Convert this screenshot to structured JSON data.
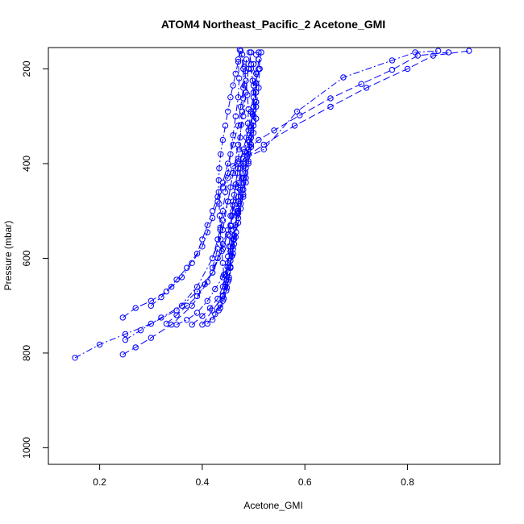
{
  "chart_data": {
    "type": "line",
    "title": "ATOM4 Northeast_Pacific_2 Acetone_GMI",
    "xlabel": "Acetone_GMI",
    "ylabel": "Pressure (mbar)",
    "xlim": [
      0.1,
      0.98
    ],
    "ylim": [
      1035,
      155
    ],
    "y_reversed": true,
    "x_ticks": [
      0.2,
      0.4,
      0.6,
      0.8
    ],
    "y_ticks": [
      200,
      400,
      600,
      800,
      1000
    ],
    "grid": false,
    "line_color": "#0000ff",
    "marker": "open-circle",
    "series": [
      {
        "points": [
          [
            0.152,
            810
          ],
          [
            0.2,
            782
          ],
          [
            0.25,
            760
          ],
          [
            0.3,
            738
          ],
          [
            0.35,
            710
          ],
          [
            0.39,
            660
          ],
          [
            0.42,
            600
          ],
          [
            0.44,
            540
          ],
          [
            0.45,
            480
          ],
          [
            0.46,
            420
          ],
          [
            0.47,
            360
          ],
          [
            0.48,
            300
          ],
          [
            0.485,
            250
          ],
          [
            0.49,
            200
          ],
          [
            0.495,
            165
          ]
        ]
      },
      {
        "points": [
          [
            0.245,
            803
          ],
          [
            0.27,
            788
          ],
          [
            0.3,
            768
          ],
          [
            0.34,
            740
          ],
          [
            0.38,
            700
          ],
          [
            0.41,
            650
          ],
          [
            0.43,
            600
          ],
          [
            0.45,
            550
          ],
          [
            0.46,
            500
          ],
          [
            0.47,
            450
          ],
          [
            0.48,
            400
          ],
          [
            0.49,
            350
          ],
          [
            0.5,
            300
          ],
          [
            0.505,
            250
          ],
          [
            0.51,
            200
          ],
          [
            0.515,
            165
          ]
        ]
      },
      {
        "points": [
          [
            0.25,
            772
          ],
          [
            0.28,
            752
          ],
          [
            0.32,
            725
          ],
          [
            0.36,
            700
          ],
          [
            0.39,
            670
          ],
          [
            0.42,
            630
          ],
          [
            0.44,
            580
          ],
          [
            0.455,
            530
          ],
          [
            0.47,
            480
          ],
          [
            0.48,
            430
          ],
          [
            0.49,
            380
          ],
          [
            0.495,
            330
          ],
          [
            0.5,
            280
          ],
          [
            0.505,
            230
          ],
          [
            0.51,
            180
          ]
        ]
      },
      {
        "points": [
          [
            0.245,
            725
          ],
          [
            0.27,
            705
          ],
          [
            0.3,
            690
          ],
          [
            0.33,
            670
          ],
          [
            0.35,
            645
          ],
          [
            0.37,
            620
          ],
          [
            0.39,
            590
          ],
          [
            0.4,
            560
          ],
          [
            0.41,
            530
          ],
          [
            0.42,
            500
          ],
          [
            0.43,
            470
          ],
          [
            0.44,
            440
          ],
          [
            0.45,
            400
          ],
          [
            0.46,
            360
          ],
          [
            0.47,
            320
          ],
          [
            0.475,
            280
          ],
          [
            0.48,
            240
          ],
          [
            0.48,
            200
          ],
          [
            0.475,
            162
          ]
        ]
      },
      {
        "points": [
          [
            0.3,
            700
          ],
          [
            0.32,
            682
          ],
          [
            0.34,
            660
          ],
          [
            0.36,
            640
          ],
          [
            0.38,
            610
          ],
          [
            0.4,
            575
          ],
          [
            0.41,
            545
          ],
          [
            0.42,
            515
          ],
          [
            0.43,
            480
          ],
          [
            0.44,
            450
          ],
          [
            0.45,
            420
          ],
          [
            0.455,
            380
          ],
          [
            0.46,
            340
          ],
          [
            0.465,
            300
          ],
          [
            0.47,
            260
          ],
          [
            0.472,
            220
          ],
          [
            0.47,
            180
          ]
        ]
      },
      {
        "points": [
          [
            0.33,
            738
          ],
          [
            0.35,
            720
          ],
          [
            0.37,
            700
          ],
          [
            0.39,
            680
          ],
          [
            0.405,
            655
          ],
          [
            0.42,
            630
          ],
          [
            0.43,
            600
          ],
          [
            0.44,
            570
          ],
          [
            0.45,
            540
          ],
          [
            0.455,
            510
          ],
          [
            0.46,
            480
          ],
          [
            0.465,
            450
          ],
          [
            0.47,
            410
          ],
          [
            0.48,
            370
          ],
          [
            0.49,
            330
          ],
          [
            0.495,
            290
          ],
          [
            0.5,
            250
          ],
          [
            0.505,
            210
          ],
          [
            0.505,
            170
          ]
        ]
      },
      {
        "points": [
          [
            0.35,
            740
          ],
          [
            0.37,
            730
          ],
          [
            0.39,
            715
          ],
          [
            0.41,
            690
          ],
          [
            0.425,
            665
          ],
          [
            0.44,
            640
          ],
          [
            0.45,
            610
          ],
          [
            0.455,
            575
          ],
          [
            0.46,
            540
          ],
          [
            0.47,
            505
          ],
          [
            0.48,
            470
          ],
          [
            0.485,
            440
          ],
          [
            0.49,
            400
          ],
          [
            0.495,
            360
          ],
          [
            0.5,
            320
          ],
          [
            0.505,
            280
          ],
          [
            0.51,
            240
          ],
          [
            0.512,
            200
          ],
          [
            0.51,
            165
          ]
        ]
      },
      {
        "points": [
          [
            0.38,
            740
          ],
          [
            0.4,
            722
          ],
          [
            0.415,
            705
          ],
          [
            0.43,
            685
          ],
          [
            0.44,
            660
          ],
          [
            0.445,
            635
          ],
          [
            0.45,
            610
          ],
          [
            0.455,
            585
          ],
          [
            0.46,
            560
          ],
          [
            0.465,
            530
          ],
          [
            0.47,
            500
          ],
          [
            0.475,
            470
          ],
          [
            0.48,
            440
          ],
          [
            0.485,
            410
          ],
          [
            0.49,
            380
          ],
          [
            0.495,
            345
          ],
          [
            0.5,
            310
          ],
          [
            0.505,
            270
          ],
          [
            0.505,
            230
          ],
          [
            0.5,
            190
          ]
        ]
      },
      {
        "points": [
          [
            0.41,
            738
          ],
          [
            0.425,
            718
          ],
          [
            0.435,
            698
          ],
          [
            0.44,
            678
          ],
          [
            0.445,
            655
          ],
          [
            0.45,
            630
          ],
          [
            0.455,
            605
          ],
          [
            0.46,
            580
          ],
          [
            0.465,
            555
          ],
          [
            0.47,
            525
          ],
          [
            0.475,
            495
          ],
          [
            0.48,
            465
          ],
          [
            0.485,
            430
          ],
          [
            0.49,
            395
          ],
          [
            0.495,
            365
          ],
          [
            0.5,
            335
          ],
          [
            0.505,
            305
          ],
          [
            0.505,
            270
          ],
          [
            0.5,
            235
          ],
          [
            0.495,
            200
          ]
        ]
      },
      {
        "points": [
          [
            0.42,
            730
          ],
          [
            0.432,
            710
          ],
          [
            0.44,
            690
          ],
          [
            0.447,
            668
          ],
          [
            0.452,
            645
          ],
          [
            0.455,
            620
          ],
          [
            0.458,
            595
          ],
          [
            0.462,
            570
          ],
          [
            0.466,
            545
          ],
          [
            0.47,
            515
          ],
          [
            0.475,
            485
          ],
          [
            0.48,
            455
          ],
          [
            0.484,
            420
          ],
          [
            0.488,
            385
          ],
          [
            0.492,
            355
          ],
          [
            0.495,
            325
          ],
          [
            0.498,
            295
          ],
          [
            0.5,
            260
          ],
          [
            0.498,
            225
          ],
          [
            0.495,
            190
          ],
          [
            0.492,
            165
          ]
        ]
      },
      {
        "points": [
          [
            0.435,
            705
          ],
          [
            0.442,
            685
          ],
          [
            0.448,
            662
          ],
          [
            0.452,
            640
          ],
          [
            0.455,
            618
          ],
          [
            0.457,
            596
          ],
          [
            0.459,
            575
          ],
          [
            0.462,
            553
          ],
          [
            0.465,
            530
          ],
          [
            0.468,
            505
          ],
          [
            0.471,
            480
          ],
          [
            0.474,
            455
          ],
          [
            0.477,
            430
          ],
          [
            0.48,
            405
          ],
          [
            0.483,
            375
          ],
          [
            0.486,
            345
          ],
          [
            0.489,
            315
          ],
          [
            0.49,
            285
          ],
          [
            0.488,
            255
          ],
          [
            0.485,
            225
          ],
          [
            0.482,
            195
          ],
          [
            0.478,
            170
          ]
        ]
      },
      {
        "points": [
          [
            0.44,
            680
          ],
          [
            0.445,
            660
          ],
          [
            0.447,
            638
          ],
          [
            0.449,
            618
          ],
          [
            0.45,
            596
          ],
          [
            0.452,
            575
          ],
          [
            0.454,
            553
          ],
          [
            0.456,
            532
          ],
          [
            0.458,
            510
          ],
          [
            0.46,
            488
          ],
          [
            0.462,
            466
          ],
          [
            0.465,
            444
          ],
          [
            0.468,
            420
          ],
          [
            0.47,
            395
          ],
          [
            0.472,
            370
          ],
          [
            0.474,
            345
          ],
          [
            0.476,
            318
          ],
          [
            0.478,
            290
          ],
          [
            0.48,
            262
          ],
          [
            0.482,
            235
          ],
          [
            0.484,
            205
          ],
          [
            0.486,
            180
          ]
        ]
      },
      {
        "points": [
          [
            0.445,
            660
          ],
          [
            0.442,
            635
          ],
          [
            0.44,
            610
          ],
          [
            0.438,
            585
          ],
          [
            0.436,
            560
          ],
          [
            0.435,
            535
          ],
          [
            0.434,
            510
          ],
          [
            0.433,
            485
          ],
          [
            0.432,
            460
          ],
          [
            0.432,
            435
          ],
          [
            0.433,
            410
          ],
          [
            0.436,
            380
          ],
          [
            0.44,
            350
          ],
          [
            0.445,
            320
          ],
          [
            0.45,
            290
          ],
          [
            0.455,
            260
          ],
          [
            0.46,
            235
          ],
          [
            0.465,
            210
          ],
          [
            0.47,
            185
          ],
          [
            0.473,
            160
          ]
        ]
      },
      {
        "points": [
          [
            0.4,
            740
          ],
          [
            0.42,
            710
          ],
          [
            0.44,
            680
          ],
          [
            0.45,
            650
          ],
          [
            0.455,
            620
          ],
          [
            0.46,
            590
          ],
          [
            0.462,
            560
          ],
          [
            0.465,
            530
          ],
          [
            0.468,
            500
          ],
          [
            0.47,
            470
          ],
          [
            0.472,
            440
          ],
          [
            0.475,
            410
          ],
          [
            0.48,
            390
          ],
          [
            0.52,
            360
          ],
          [
            0.58,
            320
          ],
          [
            0.65,
            280
          ],
          [
            0.72,
            240
          ],
          [
            0.8,
            200
          ],
          [
            0.85,
            172
          ],
          [
            0.92,
            162
          ]
        ]
      },
      {
        "points": [
          [
            0.42,
            620
          ],
          [
            0.43,
            580
          ],
          [
            0.435,
            540
          ],
          [
            0.44,
            500
          ],
          [
            0.445,
            460
          ],
          [
            0.45,
            430
          ],
          [
            0.46,
            405
          ],
          [
            0.48,
            390
          ],
          [
            0.52,
            370
          ],
          [
            0.585,
            290
          ],
          [
            0.675,
            218
          ],
          [
            0.77,
            182
          ],
          [
            0.815,
            165
          ],
          [
            0.86,
            162
          ]
        ]
      },
      {
        "points": [
          [
            0.42,
            600
          ],
          [
            0.43,
            560
          ],
          [
            0.44,
            520
          ],
          [
            0.45,
            480
          ],
          [
            0.455,
            450
          ],
          [
            0.46,
            420
          ],
          [
            0.47,
            390
          ],
          [
            0.49,
            370
          ],
          [
            0.51,
            350
          ],
          [
            0.54,
            330
          ],
          [
            0.59,
            298
          ],
          [
            0.65,
            262
          ],
          [
            0.71,
            232
          ],
          [
            0.77,
            202
          ],
          [
            0.82,
            172
          ],
          [
            0.88,
            165
          ]
        ]
      }
    ]
  }
}
